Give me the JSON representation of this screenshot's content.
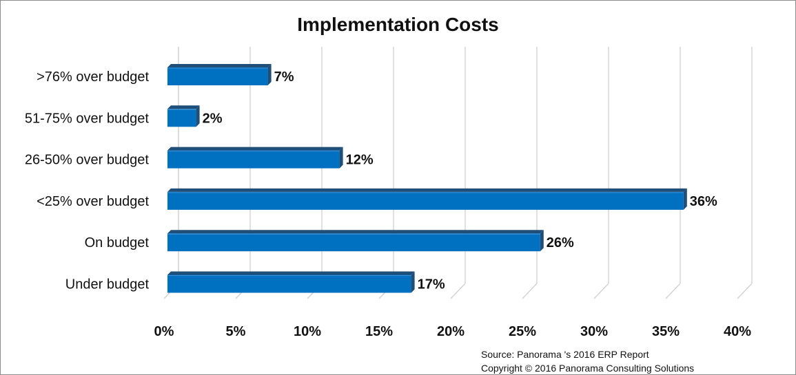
{
  "chart_data": {
    "type": "bar",
    "orientation": "horizontal",
    "title": "Implementation Costs",
    "categories": [
      ">76% over budget",
      "51-75% over budget",
      "26-50% over budget",
      "<25% over budget",
      "On budget",
      "Under budget"
    ],
    "values": [
      7,
      2,
      12,
      36,
      26,
      17
    ],
    "data_labels": [
      "7%",
      "2%",
      "12%",
      "36%",
      "26%",
      "17%"
    ],
    "x_ticks": [
      "0%",
      "5%",
      "10%",
      "15%",
      "20%",
      "25%",
      "30%",
      "35%",
      "40%"
    ],
    "xlim": [
      0,
      40
    ],
    "grid": true,
    "bar_color": "#0070C0",
    "bar_shade_color": "#1F4E79"
  },
  "source": {
    "line1": "Source: Panorama 's 2016 ERP Report",
    "line2": "Copyright © 2016 Panorama Consulting Solutions"
  }
}
